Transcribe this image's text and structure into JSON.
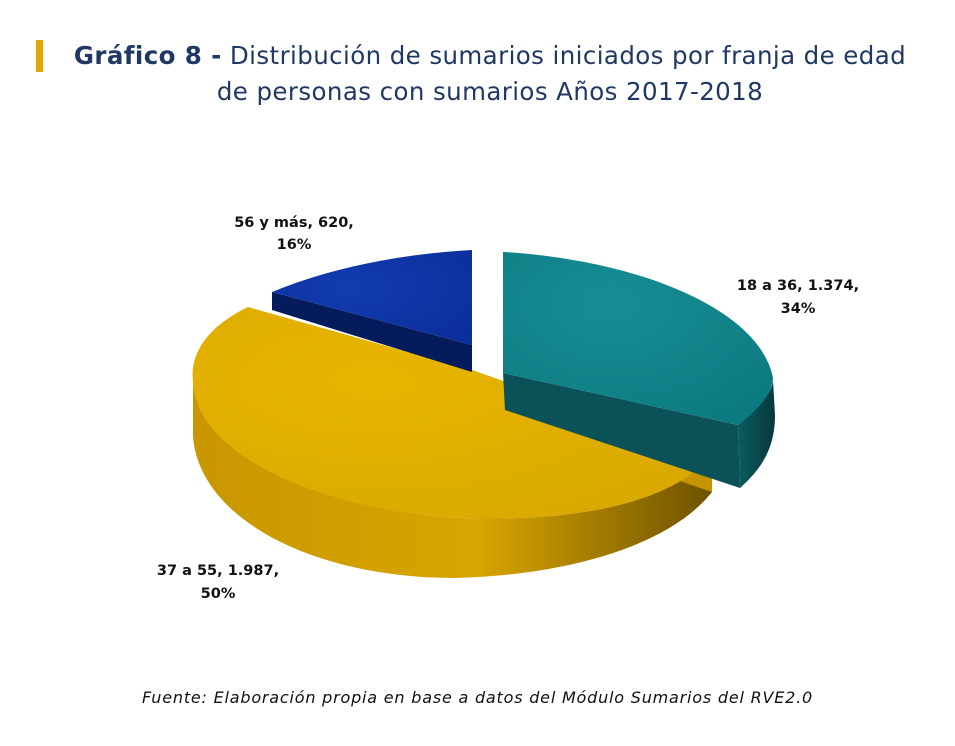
{
  "title": {
    "lead": "Gráfico 8 -",
    "rest": "Distribución de sumarios iniciados por franja de edad de personas con sumarios Años 2017-2018"
  },
  "source": "Fuente: Elaboración propia en base a datos del Módulo Sumarios del RVE2.0",
  "colors": {
    "accent_bar": "#E0A800",
    "title": "#203864"
  },
  "chart_data": {
    "type": "pie",
    "style": "3d-exploded",
    "categories": [
      "18 a 36",
      "37 a 55",
      "56 y más"
    ],
    "values": [
      1374,
      1987,
      620
    ],
    "percentages": [
      "34%",
      "50%",
      "16%"
    ],
    "value_labels": [
      "1.374",
      "1.987",
      "620"
    ],
    "colors": [
      "#0E7F86",
      "#DDAC00",
      "#0A2E9A"
    ],
    "data_labels": [
      {
        "line1": "18 a 36, 1.374,",
        "line2": "34%"
      },
      {
        "line1": "37 a 55, 1.987,",
        "line2": "50%"
      },
      {
        "line1": "56 y más, 620,",
        "line2": "16%"
      }
    ],
    "legend": "none"
  }
}
